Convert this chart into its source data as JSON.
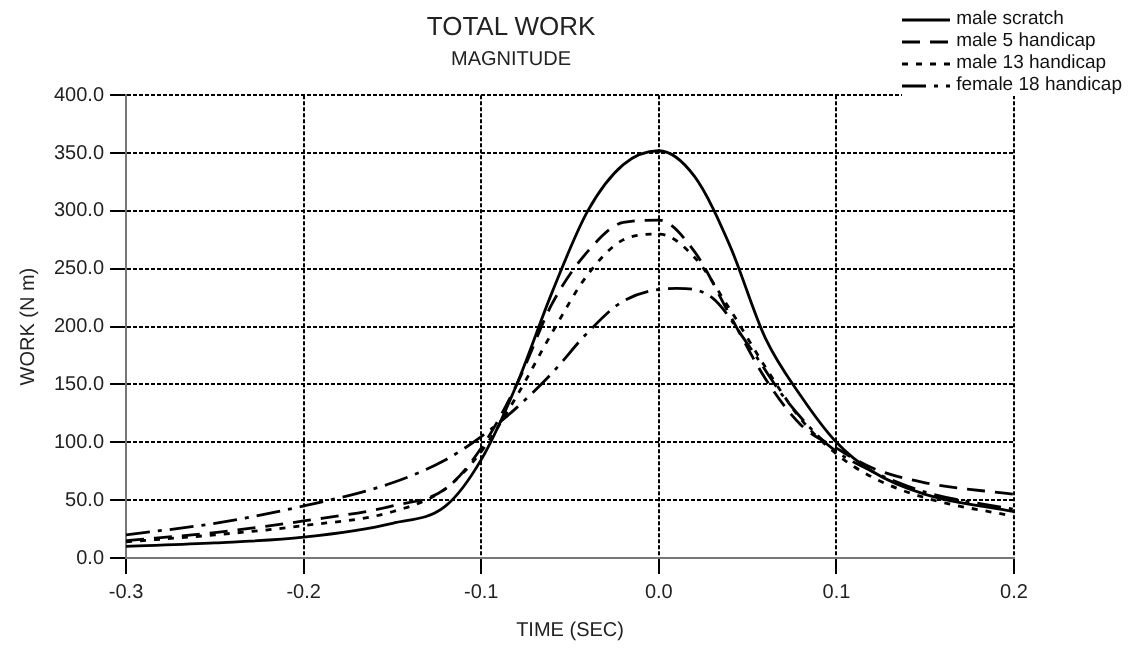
{
  "chart_data": {
    "type": "line",
    "title": "TOTAL WORK",
    "subtitle": "MAGNITUDE",
    "xlabel": "TIME (SEC)",
    "ylabel": "WORK (N m)",
    "xlim": [
      -0.3,
      0.2
    ],
    "xticks": [
      -0.3,
      -0.2,
      -0.1,
      {
        "value": 0,
        "label": "0.0"
      },
      0.1,
      0.2
    ],
    "ylim": [
      0,
      400
    ],
    "yticks": [
      {
        "value": 0,
        "label": "0.0"
      },
      {
        "value": 50,
        "label": "50.0"
      },
      {
        "value": 100,
        "label": "100.0"
      },
      {
        "value": 150,
        "label": "150.0"
      },
      {
        "value": 200,
        "label": "200.0"
      },
      {
        "value": 250,
        "label": "250.0"
      },
      {
        "value": 300,
        "label": "300.0"
      },
      {
        "value": 350,
        "label": "350.0"
      },
      {
        "value": 400,
        "label": "400.0"
      }
    ],
    "grid": true,
    "legend": "top right",
    "marker": "none",
    "series": [
      {
        "name": "male scratch",
        "color": "#000000",
        "line_style": "solid",
        "x": [
          -0.3,
          -0.25,
          -0.2,
          -0.15,
          -0.12,
          -0.1,
          -0.08,
          -0.06,
          -0.04,
          -0.02,
          0,
          0.02,
          0.04,
          0.06,
          0.08,
          0.1,
          0.12,
          0.15,
          0.2
        ],
        "values": [
          10,
          13,
          18,
          30,
          45,
          85,
          150,
          230,
          300,
          340,
          352,
          330,
          270,
          190,
          140,
          100,
          75,
          55,
          40
        ]
      },
      {
        "name": "male 5 handicap",
        "color": "#000000",
        "line_style": "dashed",
        "x": [
          -0.3,
          -0.25,
          -0.2,
          -0.15,
          -0.12,
          -0.1,
          -0.08,
          -0.06,
          -0.04,
          -0.02,
          0,
          0.02,
          0.04,
          0.06,
          0.08,
          0.1,
          0.12,
          0.15,
          0.2
        ],
        "values": [
          15,
          22,
          32,
          45,
          60,
          95,
          150,
          220,
          265,
          290,
          292,
          265,
          210,
          155,
          115,
          95,
          78,
          65,
          55
        ]
      },
      {
        "name": "male 13 handicap",
        "color": "#000000",
        "line_style": "dotted",
        "x": [
          -0.3,
          -0.25,
          -0.2,
          -0.15,
          -0.12,
          -0.1,
          -0.08,
          -0.06,
          -0.04,
          -0.02,
          0,
          0.02,
          0.04,
          0.06,
          0.08,
          0.1,
          0.12,
          0.15,
          0.2
        ],
        "values": [
          14,
          20,
          28,
          40,
          60,
          92,
          140,
          195,
          245,
          275,
          280,
          260,
          215,
          165,
          120,
          90,
          70,
          52,
          36
        ]
      },
      {
        "name": "female 18 handicap",
        "color": "#000000",
        "line_style": "dashed",
        "x": [
          -0.3,
          -0.25,
          -0.2,
          -0.15,
          -0.12,
          -0.1,
          -0.08,
          -0.06,
          -0.04,
          -0.02,
          0.01,
          0.03,
          0.05,
          0.07,
          0.09,
          0.1,
          0.12,
          0.15,
          0.2
        ],
        "values": [
          20,
          30,
          45,
          65,
          85,
          105,
          130,
          160,
          195,
          222,
          233,
          225,
          185,
          140,
          105,
          92,
          75,
          57,
          42
        ]
      }
    ]
  }
}
